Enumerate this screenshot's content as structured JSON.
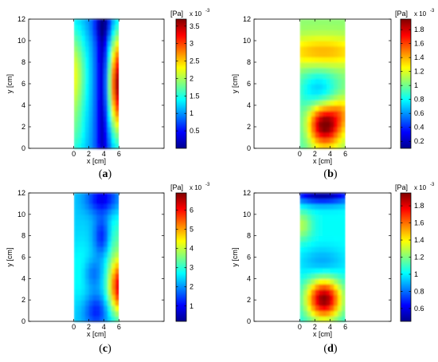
{
  "chart_data": [
    {
      "panel": "(a)",
      "panel_letter": "a",
      "type": "heatmap",
      "xlabel": "x [cm]",
      "ylabel": "y [cm]",
      "xlim": [
        -6,
        12
      ],
      "ylim": [
        0,
        12
      ],
      "x_ticks": [
        "0",
        "2",
        "4",
        "6"
      ],
      "y_ticks": [
        "0",
        "2",
        "4",
        "6",
        "8",
        "10",
        "12"
      ],
      "data_x_range": [
        0,
        6
      ],
      "data_y_range": [
        0,
        12
      ],
      "colorbar": {
        "unit_label": "[Pa]",
        "exponent_label": "x 10",
        "exponent_power": "-3",
        "min": 0,
        "max": 3.7,
        "ticks": [
          0.5,
          1,
          1.5,
          2,
          2.5,
          3,
          3.5
        ],
        "tick_labels": [
          "0.5",
          "1",
          "1.5",
          "2",
          "2.5",
          "3",
          "3.5"
        ]
      },
      "field": {
        "base": 1.0,
        "blobs": [
          {
            "x": 6.3,
            "y": 6.0,
            "amp": 2.8,
            "sx": 1.3,
            "sy": 3.2
          },
          {
            "x": -0.2,
            "y": 6.8,
            "amp": 1.3,
            "sx": 1.3,
            "sy": 3.2
          },
          {
            "x": 0.2,
            "y": 1.0,
            "amp": 0.4,
            "sx": 1.0,
            "sy": 2.0
          },
          {
            "x": 3.9,
            "y": 6.0,
            "amp": -1.1,
            "sx": 0.7,
            "sy": 8.0
          },
          {
            "x": 3.9,
            "y": 11.5,
            "amp": -0.3,
            "sx": 1.2,
            "sy": 1.0
          }
        ]
      }
    },
    {
      "panel": "(b)",
      "panel_letter": "b",
      "type": "heatmap",
      "xlabel": "x [cm]",
      "ylabel": "y [cm]",
      "xlim": [
        -6,
        12
      ],
      "ylim": [
        0,
        12
      ],
      "x_ticks": [
        "0",
        "2",
        "4",
        "6"
      ],
      "y_ticks": [
        "0",
        "2",
        "4",
        "6",
        "8",
        "10",
        "12"
      ],
      "data_x_range": [
        0,
        6
      ],
      "data_y_range": [
        0,
        12
      ],
      "colorbar": {
        "unit_label": "[Pa]",
        "exponent_label": "x 10",
        "exponent_power": "-3",
        "min": 0.1,
        "max": 1.95,
        "ticks": [
          0.2,
          0.4,
          0.6,
          0.8,
          1,
          1.2,
          1.4,
          1.6,
          1.8
        ],
        "tick_labels": [
          "0.2",
          "0.4",
          "0.6",
          "0.8",
          "1",
          "1.2",
          "1.4",
          "1.6",
          "1.8"
        ]
      },
      "field": {
        "base": 1.05,
        "blobs": [
          {
            "x": 3.3,
            "y": 2.2,
            "amp": 0.95,
            "sx": 1.5,
            "sy": 1.3
          },
          {
            "x": 5.5,
            "y": 3.5,
            "amp": 0.25,
            "sx": 1.0,
            "sy": 1.0
          },
          {
            "x": 3.0,
            "y": 9.0,
            "amp": 0.35,
            "sx": 4.0,
            "sy": 1.0
          },
          {
            "x": 2.5,
            "y": 5.5,
            "amp": -0.35,
            "sx": 1.8,
            "sy": 1.3
          },
          {
            "x": 0.5,
            "y": 1.5,
            "amp": -0.15,
            "sx": 1.0,
            "sy": 2.0
          }
        ]
      }
    },
    {
      "panel": "(c)",
      "panel_letter": "c",
      "type": "heatmap",
      "xlabel": "x [cm]",
      "ylabel": "y [cm]",
      "xlim": [
        -6,
        12
      ],
      "ylim": [
        0,
        12
      ],
      "x_ticks": [
        "0",
        "2",
        "4",
        "6"
      ],
      "y_ticks": [
        "0",
        "2",
        "4",
        "6",
        "8",
        "10",
        "12"
      ],
      "data_x_range": [
        0,
        6
      ],
      "data_y_range": [
        0,
        12
      ],
      "colorbar": {
        "unit_label": "[Pa]",
        "exponent_label": "x 10",
        "exponent_power": "-3",
        "min": 0.2,
        "max": 6.9,
        "ticks": [
          1,
          2,
          3,
          4,
          5,
          6
        ],
        "tick_labels": [
          "1",
          "2",
          "3",
          "4",
          "5",
          "6"
        ]
      },
      "field": {
        "base": 2.4,
        "blobs": [
          {
            "x": 6.2,
            "y": 3.2,
            "amp": 4.0,
            "sx": 1.1,
            "sy": 1.8
          },
          {
            "x": 5.5,
            "y": 7.5,
            "amp": 0.8,
            "sx": 1.0,
            "sy": 2.0
          },
          {
            "x": 1.0,
            "y": 4.5,
            "amp": 0.5,
            "sx": 1.2,
            "sy": 2.0
          },
          {
            "x": 3.8,
            "y": 8.0,
            "amp": -1.3,
            "sx": 0.8,
            "sy": 1.3
          },
          {
            "x": 3.8,
            "y": 11.5,
            "amp": -1.5,
            "sx": 1.5,
            "sy": 1.0
          },
          {
            "x": 3.0,
            "y": 1.0,
            "amp": -1.2,
            "sx": 1.2,
            "sy": 1.2
          },
          {
            "x": 2.5,
            "y": 4.5,
            "amp": -0.8,
            "sx": 1.0,
            "sy": 1.0
          }
        ]
      }
    },
    {
      "panel": "(d)",
      "panel_letter": "d",
      "type": "heatmap",
      "xlabel": "x [cm]",
      "ylabel": "y [cm]",
      "xlim": [
        -6,
        12
      ],
      "ylim": [
        0,
        12
      ],
      "x_ticks": [
        "0",
        "2",
        "4",
        "6"
      ],
      "y_ticks": [
        "0",
        "2",
        "4",
        "6",
        "8",
        "10",
        "12"
      ],
      "data_x_range": [
        0,
        6
      ],
      "data_y_range": [
        0,
        12
      ],
      "colorbar": {
        "unit_label": "[Pa]",
        "exponent_label": "x 10",
        "exponent_power": "-3",
        "min": 0.45,
        "max": 1.95,
        "ticks": [
          0.6,
          0.8,
          1,
          1.2,
          1.4,
          1.6,
          1.8
        ],
        "tick_labels": [
          "0.6",
          "0.8",
          "1",
          "1.2",
          "1.4",
          "1.6",
          "1.8"
        ]
      },
      "field": {
        "base": 1.02,
        "blobs": [
          {
            "x": 3.2,
            "y": 2.1,
            "amp": 0.92,
            "sx": 1.6,
            "sy": 1.3
          },
          {
            "x": 0.2,
            "y": 9.0,
            "amp": 0.25,
            "sx": 1.0,
            "sy": 1.0
          },
          {
            "x": 3.0,
            "y": 12.0,
            "amp": -0.55,
            "sx": 3.0,
            "sy": 0.7
          },
          {
            "x": 3.0,
            "y": 5.5,
            "amp": -0.15,
            "sx": 2.0,
            "sy": 1.0
          }
        ]
      }
    }
  ]
}
